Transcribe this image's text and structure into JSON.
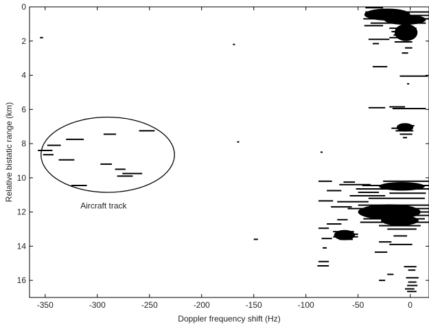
{
  "chart_data": {
    "type": "scatter",
    "title": "",
    "xlabel": "Doppler frequency shift (Hz)",
    "ylabel": "Relative bistatic range (km)",
    "xlim": [
      -365,
      18
    ],
    "ylim": [
      0,
      17
    ],
    "y_inverted": true,
    "grid": false,
    "x_ticks": [
      -350,
      -300,
      -250,
      -200,
      -150,
      -100,
      -50,
      0
    ],
    "y_ticks": [
      0,
      2,
      4,
      6,
      8,
      10,
      12,
      14,
      16
    ],
    "mark_color": "#000000",
    "annotations": [
      {
        "text": "Aircraft track",
        "x": -294,
        "y": 11.8
      }
    ],
    "ellipse": {
      "cx": -290,
      "cy": 8.65,
      "rx": 64,
      "ry": 2.2
    },
    "segments": [
      {
        "x1": -357,
        "x2": -343,
        "y": 8.4
      },
      {
        "x1": -348,
        "x2": -335,
        "y": 8.1
      },
      {
        "x1": -352,
        "x2": -342,
        "y": 8.65
      },
      {
        "x1": -330,
        "x2": -313,
        "y": 7.75
      },
      {
        "x1": -337,
        "x2": -322,
        "y": 8.95
      },
      {
        "x1": -297,
        "x2": -286,
        "y": 9.2
      },
      {
        "x1": -294,
        "x2": -282,
        "y": 7.45
      },
      {
        "x1": -260,
        "x2": -245,
        "y": 7.25
      },
      {
        "x1": -281,
        "x2": -266,
        "y": 9.9
      },
      {
        "x1": -276,
        "x2": -257,
        "y": 9.75
      },
      {
        "x1": -283,
        "x2": -273,
        "y": 9.5
      },
      {
        "x1": -325,
        "x2": -310,
        "y": 10.45
      },
      {
        "x1": -355,
        "x2": -352,
        "y": 1.8
      },
      {
        "x1": -170,
        "x2": -168,
        "y": 2.2
      },
      {
        "x1": -166,
        "x2": -164,
        "y": 7.9
      },
      {
        "x1": -150,
        "x2": -146,
        "y": 13.6
      },
      {
        "x1": -86,
        "x2": -84,
        "y": 8.5
      },
      {
        "x1": -88,
        "x2": -78,
        "y": 14.9
      },
      {
        "x1": -89,
        "x2": -78,
        "y": 15.15
      },
      {
        "x1": -43,
        "x2": -26,
        "y": 0.05
      },
      {
        "x1": -43,
        "x2": 18,
        "y": 0.3
      },
      {
        "x1": -42,
        "x2": 18,
        "y": 0.5
      },
      {
        "x1": -45,
        "x2": 18,
        "y": 0.7
      },
      {
        "x1": -38,
        "x2": 15,
        "y": 0.95
      },
      {
        "x1": -44,
        "x2": -26,
        "y": 1.1
      },
      {
        "x1": -20,
        "x2": 6,
        "y": 1.25
      },
      {
        "x1": -18,
        "x2": 6,
        "y": 1.45
      },
      {
        "x1": -16,
        "x2": 4,
        "y": 1.65
      },
      {
        "x1": -20,
        "x2": 4,
        "y": 1.8
      },
      {
        "x1": -40,
        "x2": -20,
        "y": 1.9
      },
      {
        "x1": -15,
        "x2": 2,
        "y": 2.05
      },
      {
        "x1": -36,
        "x2": -30,
        "y": 2.15
      },
      {
        "x1": -5,
        "x2": 2,
        "y": 2.4
      },
      {
        "x1": -8,
        "x2": -2,
        "y": 2.7
      },
      {
        "x1": -36,
        "x2": -22,
        "y": 3.5
      },
      {
        "x1": -10,
        "x2": 17,
        "y": 4.05
      },
      {
        "x1": -3,
        "x2": -1,
        "y": 4.5
      },
      {
        "x1": -40,
        "x2": -24,
        "y": 5.9
      },
      {
        "x1": -20,
        "x2": -5,
        "y": 5.85
      },
      {
        "x1": -17,
        "x2": 15,
        "y": 5.95
      },
      {
        "x1": -12,
        "x2": 4,
        "y": 6.95
      },
      {
        "x1": -18,
        "x2": -2,
        "y": 7.1
      },
      {
        "x1": -14,
        "x2": 3,
        "y": 7.25
      },
      {
        "x1": -10,
        "x2": 2,
        "y": 7.45
      },
      {
        "x1": -7,
        "x2": -3,
        "y": 7.65
      },
      {
        "x1": -88,
        "x2": -75,
        "y": 10.2
      },
      {
        "x1": -64,
        "x2": -53,
        "y": 10.25
      },
      {
        "x1": -26,
        "x2": 18,
        "y": 10.2
      },
      {
        "x1": -68,
        "x2": -38,
        "y": 10.4
      },
      {
        "x1": -46,
        "x2": 18,
        "y": 10.45
      },
      {
        "x1": -52,
        "x2": 18,
        "y": 10.65
      },
      {
        "x1": -80,
        "x2": -66,
        "y": 10.75
      },
      {
        "x1": -50,
        "x2": -30,
        "y": 10.85
      },
      {
        "x1": -20,
        "x2": 15,
        "y": 10.9
      },
      {
        "x1": -58,
        "x2": -24,
        "y": 11.05
      },
      {
        "x1": -40,
        "x2": 14,
        "y": 11.2
      },
      {
        "x1": -88,
        "x2": -74,
        "y": 11.35
      },
      {
        "x1": -70,
        "x2": -40,
        "y": 11.4
      },
      {
        "x1": -50,
        "x2": 18,
        "y": 11.6
      },
      {
        "x1": -76,
        "x2": -56,
        "y": 11.7
      },
      {
        "x1": -60,
        "x2": 18,
        "y": 11.8
      },
      {
        "x1": -50,
        "x2": 18,
        "y": 12.0
      },
      {
        "x1": -40,
        "x2": 18,
        "y": 12.2
      },
      {
        "x1": -45,
        "x2": 14,
        "y": 12.4
      },
      {
        "x1": -70,
        "x2": -60,
        "y": 12.45
      },
      {
        "x1": -48,
        "x2": 18,
        "y": 12.6
      },
      {
        "x1": -80,
        "x2": -66,
        "y": 12.7
      },
      {
        "x1": -30,
        "x2": 10,
        "y": 12.8
      },
      {
        "x1": -88,
        "x2": -78,
        "y": 12.95
      },
      {
        "x1": -22,
        "x2": 6,
        "y": 13.0
      },
      {
        "x1": -74,
        "x2": -54,
        "y": 13.15
      },
      {
        "x1": -72,
        "x2": -50,
        "y": 13.3
      },
      {
        "x1": -74,
        "x2": -50,
        "y": 13.45
      },
      {
        "x1": -68,
        "x2": -55,
        "y": 13.6
      },
      {
        "x1": -85,
        "x2": -75,
        "y": 13.55
      },
      {
        "x1": -16,
        "x2": -3,
        "y": 13.4
      },
      {
        "x1": -30,
        "x2": -18,
        "y": 13.75
      },
      {
        "x1": -20,
        "x2": 2,
        "y": 13.9
      },
      {
        "x1": -84,
        "x2": -80,
        "y": 14.1
      },
      {
        "x1": -34,
        "x2": -22,
        "y": 14.35
      },
      {
        "x1": -6,
        "x2": 6,
        "y": 15.2
      },
      {
        "x1": -2,
        "x2": 5,
        "y": 15.4
      },
      {
        "x1": -22,
        "x2": -16,
        "y": 15.65
      },
      {
        "x1": -4,
        "x2": 8,
        "y": 15.85
      },
      {
        "x1": -30,
        "x2": -24,
        "y": 16.0
      },
      {
        "x1": -2,
        "x2": 6,
        "y": 16.1
      },
      {
        "x1": -3,
        "x2": 7,
        "y": 16.3
      },
      {
        "x1": -5,
        "x2": 4,
        "y": 16.5
      },
      {
        "x1": -3,
        "x2": 6,
        "y": 16.65
      }
    ],
    "blobs": [
      {
        "cx": -22,
        "cy": 0.45,
        "rx": 22,
        "ry": 0.35
      },
      {
        "cx": -5,
        "cy": 0.75,
        "rx": 20,
        "ry": 0.3
      },
      {
        "cx": -4,
        "cy": 1.5,
        "rx": 11,
        "ry": 0.5
      },
      {
        "cx": -5,
        "cy": 7.05,
        "rx": 8,
        "ry": 0.25
      },
      {
        "cx": -8,
        "cy": 10.5,
        "rx": 22,
        "ry": 0.25
      },
      {
        "cx": -20,
        "cy": 12.0,
        "rx": 30,
        "ry": 0.45
      },
      {
        "cx": -10,
        "cy": 12.5,
        "rx": 18,
        "ry": 0.3
      },
      {
        "cx": -63,
        "cy": 13.35,
        "rx": 10,
        "ry": 0.3
      }
    ]
  }
}
